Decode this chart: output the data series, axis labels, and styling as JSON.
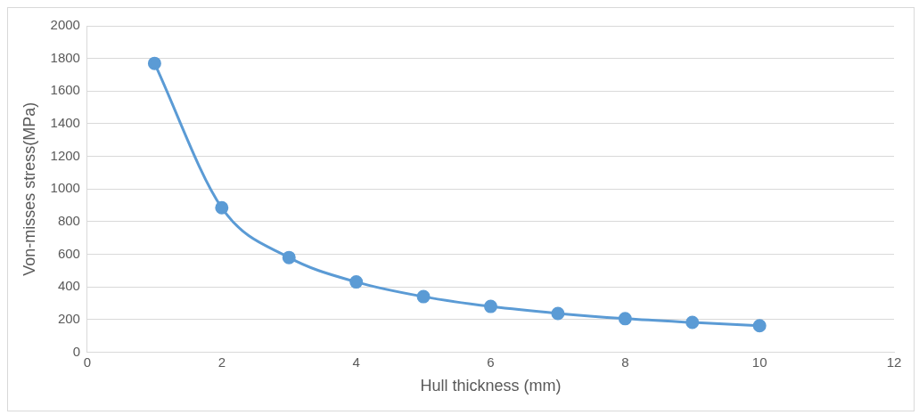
{
  "chart_data": {
    "type": "line",
    "xlabel": "Hull thickness (mm)",
    "ylabel": "Von-misses stress(MPa)",
    "x": [
      1,
      2,
      3,
      4,
      5,
      6,
      7,
      8,
      9,
      10
    ],
    "series": [
      {
        "color": "#5b9bd5",
        "values": [
          1770,
          885,
          580,
          430,
          340,
          280,
          237,
          205,
          182,
          162
        ]
      }
    ],
    "xlim": [
      0,
      12
    ],
    "xticks": [
      0,
      2,
      4,
      6,
      8,
      10,
      12
    ],
    "ylim": [
      0,
      2000
    ],
    "yticks": [
      0,
      200,
      400,
      600,
      800,
      1000,
      1200,
      1400,
      1600,
      1800,
      2000
    ],
    "grid": "y",
    "legend": false,
    "marker": "circle",
    "line_style": "solid"
  }
}
